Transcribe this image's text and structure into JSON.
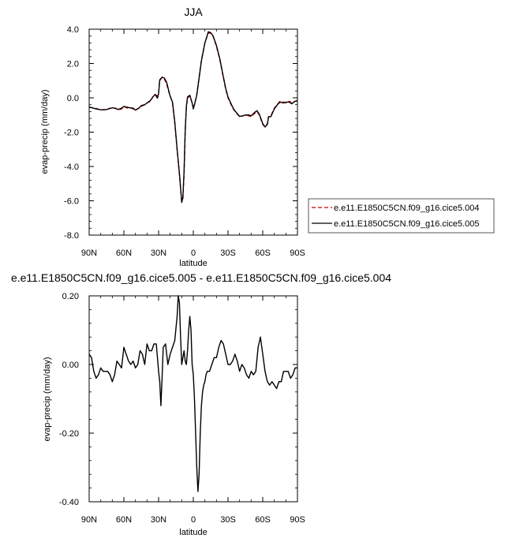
{
  "chart_data": [
    {
      "type": "line",
      "title": "JJA",
      "xlabel": "latitude",
      "ylabel": "evap-precip (mm/day)",
      "xlim": [
        90,
        -90
      ],
      "ylim": [
        -8.0,
        4.0
      ],
      "xticks": [
        {
          "value": 90,
          "label": "90N"
        },
        {
          "value": 60,
          "label": "60N"
        },
        {
          "value": 30,
          "label": "30N"
        },
        {
          "value": 0,
          "label": "0"
        },
        {
          "value": -30,
          "label": "30S"
        },
        {
          "value": -60,
          "label": "60S"
        },
        {
          "value": -90,
          "label": "90S"
        }
      ],
      "yticks": [
        {
          "value": 4.0,
          "label": "4.0"
        },
        {
          "value": 2.0,
          "label": "2.0"
        },
        {
          "value": 0.0,
          "label": "0.0"
        },
        {
          "value": -2.0,
          "label": "-2.0"
        },
        {
          "value": -4.0,
          "label": "-4.0"
        },
        {
          "value": -6.0,
          "label": "-6.0"
        },
        {
          "value": -8.0,
          "label": "-8.0"
        }
      ],
      "legend_position": "right",
      "series": [
        {
          "name": "e.e11.E1850C5CN.f09_g16.cice5.004",
          "color": "#cc0000",
          "dash": "dashed",
          "x": [
            90,
            85,
            80,
            75,
            72,
            70,
            67,
            65,
            62,
            60,
            57,
            55,
            52,
            50,
            47,
            45,
            42,
            40,
            37,
            35,
            33,
            31,
            30,
            29,
            27,
            25,
            23,
            21,
            20,
            18,
            16,
            14,
            12,
            10,
            9,
            8,
            7,
            6,
            5,
            3,
            1,
            0,
            -1,
            -3,
            -5,
            -7,
            -10,
            -13,
            -15,
            -17,
            -20,
            -23,
            -25,
            -28,
            -30,
            -33,
            -35,
            -38,
            -40,
            -43,
            -45,
            -48,
            -50,
            -53,
            -55,
            -57,
            -60,
            -62,
            -64,
            -65,
            -67,
            -70,
            -73,
            -75,
            -78,
            -80,
            -83,
            -85,
            -88,
            -90
          ],
          "y": [
            -0.55,
            -0.6,
            -0.7,
            -0.7,
            -0.6,
            -0.62,
            -0.6,
            -0.7,
            -0.65,
            -0.5,
            -0.6,
            -0.55,
            -0.65,
            -0.7,
            -0.6,
            -0.5,
            -0.4,
            -0.3,
            -0.2,
            0.05,
            0.2,
            0.1,
            0.3,
            1.0,
            1.2,
            1.1,
            0.8,
            0.3,
            0.15,
            -0.3,
            -1.5,
            -3.0,
            -4.5,
            -6.0,
            -5.9,
            -4.5,
            -2.0,
            -0.6,
            0.0,
            0.1,
            -0.3,
            -0.5,
            -0.4,
            0.2,
            1.2,
            2.2,
            3.2,
            3.8,
            3.75,
            3.6,
            3.0,
            2.2,
            1.5,
            0.5,
            0.0,
            -0.45,
            -0.7,
            -0.95,
            -1.1,
            -1.05,
            -1.0,
            -1.05,
            -1.1,
            -0.9,
            -0.8,
            -1.0,
            -1.55,
            -1.7,
            -1.5,
            -1.1,
            -1.05,
            -0.6,
            -0.35,
            -0.2,
            -0.25,
            -0.3,
            -0.2,
            -0.3,
            -0.2,
            -0.15
          ]
        },
        {
          "name": "e.e11.E1850C5CN.f09_g16.cice5.005",
          "color": "#000000",
          "dash": "solid",
          "x": [
            90,
            85,
            80,
            75,
            72,
            70,
            67,
            65,
            62,
            60,
            57,
            55,
            52,
            50,
            47,
            45,
            42,
            40,
            37,
            35,
            33,
            31,
            30,
            29,
            27,
            25,
            23,
            21,
            20,
            18,
            16,
            14,
            12,
            10,
            9,
            8,
            7,
            6,
            5,
            3,
            1,
            0,
            -1,
            -3,
            -5,
            -7,
            -10,
            -13,
            -15,
            -17,
            -20,
            -23,
            -25,
            -28,
            -30,
            -33,
            -35,
            -38,
            -40,
            -43,
            -45,
            -48,
            -50,
            -53,
            -55,
            -57,
            -60,
            -62,
            -64,
            -65,
            -67,
            -70,
            -73,
            -75,
            -78,
            -80,
            -83,
            -85,
            -88,
            -90
          ],
          "y": [
            -0.53,
            -0.63,
            -0.7,
            -0.68,
            -0.62,
            -0.58,
            -0.62,
            -0.68,
            -0.6,
            -0.5,
            -0.55,
            -0.58,
            -0.6,
            -0.72,
            -0.6,
            -0.45,
            -0.4,
            -0.3,
            -0.15,
            0.05,
            0.2,
            -0.02,
            0.25,
            1.05,
            1.2,
            1.15,
            0.9,
            0.35,
            0.1,
            -0.25,
            -1.4,
            -3.0,
            -4.4,
            -6.1,
            -5.8,
            -4.3,
            -1.9,
            -0.5,
            0.05,
            0.15,
            -0.3,
            -0.65,
            -0.4,
            0.15,
            1.15,
            2.15,
            3.2,
            3.85,
            3.8,
            3.62,
            3.05,
            2.25,
            1.55,
            0.55,
            0.05,
            -0.4,
            -0.67,
            -0.92,
            -1.08,
            -1.05,
            -1.0,
            -1.0,
            -1.05,
            -0.85,
            -0.75,
            -0.95,
            -1.5,
            -1.7,
            -1.55,
            -1.1,
            -1.1,
            -0.65,
            -0.37,
            -0.25,
            -0.3,
            -0.25,
            -0.25,
            -0.35,
            -0.2,
            -0.18
          ]
        }
      ]
    },
    {
      "type": "line",
      "title": "e.e11.E1850C5CN.f09_g16.cice5.005 - e.e11.E1850C5CN.f09_g16.cice5.004",
      "xlabel": "latitude",
      "ylabel": "evap-precip (mm/day)",
      "xlim": [
        90,
        -90
      ],
      "ylim": [
        -0.4,
        0.2
      ],
      "xticks": [
        {
          "value": 90,
          "label": "90N"
        },
        {
          "value": 60,
          "label": "60N"
        },
        {
          "value": 30,
          "label": "30N"
        },
        {
          "value": 0,
          "label": "0"
        },
        {
          "value": -30,
          "label": "30S"
        },
        {
          "value": -60,
          "label": "60S"
        },
        {
          "value": -90,
          "label": "90S"
        }
      ],
      "yticks": [
        {
          "value": 0.2,
          "label": "0.20"
        },
        {
          "value": 0.0,
          "label": "0.00"
        },
        {
          "value": -0.2,
          "label": "-0.20"
        },
        {
          "value": -0.4,
          "label": "-0.40"
        }
      ],
      "series": [
        {
          "color": "#000000",
          "dash": "solid",
          "x": [
            90,
            88,
            86,
            84,
            82,
            80,
            78,
            76,
            74,
            72,
            70,
            68,
            66,
            64,
            62,
            60,
            58,
            56,
            54,
            52,
            50,
            48,
            46,
            44,
            42,
            40,
            38,
            36,
            34,
            32,
            30,
            29,
            28,
            27,
            26,
            24,
            22,
            20,
            18,
            16,
            14,
            13,
            12,
            11,
            10,
            9,
            8,
            7,
            6,
            5,
            4,
            3,
            2,
            1,
            0,
            -1,
            -2,
            -3,
            -4,
            -5,
            -6,
            -7,
            -8,
            -9,
            -10,
            -11,
            -12,
            -14,
            -16,
            -18,
            -20,
            -22,
            -24,
            -26,
            -28,
            -30,
            -32,
            -34,
            -36,
            -38,
            -40,
            -42,
            -44,
            -46,
            -48,
            -50,
            -52,
            -54,
            -56,
            -58,
            -60,
            -62,
            -64,
            -66,
            -68,
            -70,
            -72,
            -74,
            -76,
            -78,
            -80,
            -82,
            -84,
            -86,
            -88,
            -90
          ],
          "y": [
            0.03,
            0.02,
            -0.02,
            -0.04,
            -0.03,
            -0.01,
            -0.02,
            -0.02,
            -0.02,
            -0.03,
            -0.05,
            -0.03,
            0.01,
            0.0,
            -0.01,
            0.05,
            0.03,
            0.01,
            0.0,
            0.01,
            -0.01,
            0.0,
            0.04,
            0.03,
            0.0,
            0.06,
            0.04,
            0.04,
            0.06,
            0.06,
            -0.02,
            -0.05,
            -0.12,
            -0.04,
            0.05,
            0.06,
            0.0,
            0.03,
            0.05,
            0.07,
            0.14,
            0.2,
            0.18,
            0.08,
            0.0,
            0.02,
            0.04,
            0.01,
            0.0,
            0.04,
            0.1,
            0.14,
            0.1,
            0.0,
            -0.03,
            -0.1,
            -0.2,
            -0.3,
            -0.37,
            -0.32,
            -0.2,
            -0.12,
            -0.08,
            -0.06,
            -0.05,
            -0.03,
            -0.02,
            -0.02,
            0.0,
            0.02,
            0.02,
            0.05,
            0.07,
            0.06,
            0.03,
            0.0,
            0.0,
            0.01,
            0.03,
            0.01,
            -0.02,
            0.0,
            -0.01,
            -0.03,
            -0.04,
            -0.02,
            -0.03,
            -0.02,
            0.05,
            0.08,
            0.03,
            -0.02,
            -0.05,
            -0.06,
            -0.05,
            -0.06,
            -0.07,
            -0.05,
            -0.05,
            -0.02,
            -0.02,
            -0.02,
            -0.04,
            -0.03,
            -0.01,
            -0.01
          ]
        }
      ]
    }
  ]
}
